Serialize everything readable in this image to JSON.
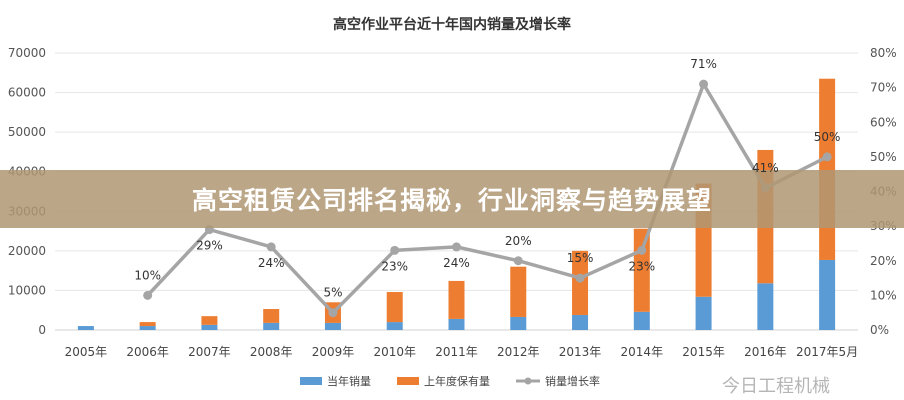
{
  "chart_data": {
    "type": "bar",
    "title": "高空作业平台近十年国内销量及增长率",
    "categories": [
      "2005年",
      "2006年",
      "2007年",
      "2008年",
      "2009年",
      "2010年",
      "2011年",
      "2012年",
      "2013年",
      "2014年",
      "2015年",
      "2016年",
      "2017年5月"
    ],
    "series": [
      {
        "name": "当年销量",
        "type": "bar",
        "stacked": true,
        "color": "#5b9bd5",
        "values": [
          1000,
          1000,
          1300,
          1800,
          1800,
          2000,
          2800,
          3300,
          3800,
          4600,
          8400,
          11800,
          17700
        ]
      },
      {
        "name": "上年度保有量",
        "type": "bar",
        "stacked": true,
        "color": "#ed7d31",
        "values": [
          0,
          1000,
          2200,
          3500,
          5200,
          7600,
          9600,
          12700,
          16200,
          21000,
          28600,
          33700,
          45800
        ]
      },
      {
        "name": "销量增长率",
        "type": "line",
        "axis": "right",
        "color": "#a5a5a5",
        "values": [
          null,
          10,
          29,
          24,
          5,
          23,
          24,
          20,
          15,
          23,
          71,
          41,
          50
        ],
        "labels": [
          "",
          "10%",
          "29%",
          "24%",
          "5%",
          "23%",
          "24%",
          "20%",
          "15%",
          "23%",
          "71%",
          "41%",
          "50%"
        ]
      }
    ],
    "y_left": {
      "ticks": [
        "0",
        "10000",
        "20000",
        "30000",
        "40000",
        "50000",
        "60000",
        "70000"
      ],
      "range": [
        0,
        70000
      ]
    },
    "y_right": {
      "ticks": [
        "0%",
        "10%",
        "20%",
        "30%",
        "40%",
        "50%",
        "60%",
        "70%",
        "80%"
      ],
      "range": [
        0,
        80
      ]
    },
    "grid": true,
    "legend": "bottom"
  },
  "banner": {
    "text": "高空租赁公司排名揭秘，行业洞察与趋势展望"
  },
  "watermark": "今日工程机械"
}
